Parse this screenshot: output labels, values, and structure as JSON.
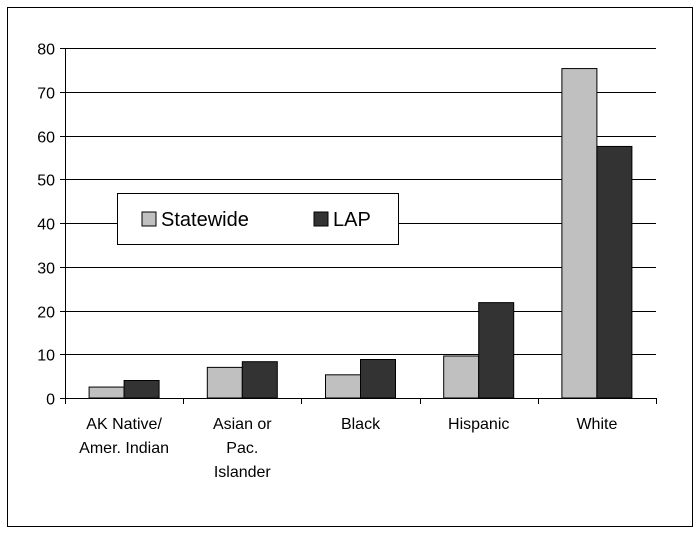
{
  "chart_data": {
    "type": "bar",
    "categories": [
      [
        "AK Native/",
        "Amer. Indian"
      ],
      [
        "Asian or",
        "Pac.",
        "Islander"
      ],
      [
        "Black"
      ],
      [
        "Hispanic"
      ],
      [
        "White"
      ]
    ],
    "series": [
      {
        "name": "Statewide",
        "values": [
          2.5,
          7,
          5.3,
          9.6,
          75.3
        ],
        "color": "#c0c0c0"
      },
      {
        "name": "LAP",
        "values": [
          4,
          8.3,
          8.8,
          21.8,
          57.5
        ],
        "color": "#333333"
      }
    ],
    "ylim": [
      0,
      80
    ],
    "yticks": [
      "0",
      "10",
      "20",
      "30",
      "40",
      "50",
      "60",
      "70",
      "80"
    ],
    "grid": true,
    "legend_position": "left-middle",
    "title": "",
    "xlabel": "",
    "ylabel": ""
  }
}
